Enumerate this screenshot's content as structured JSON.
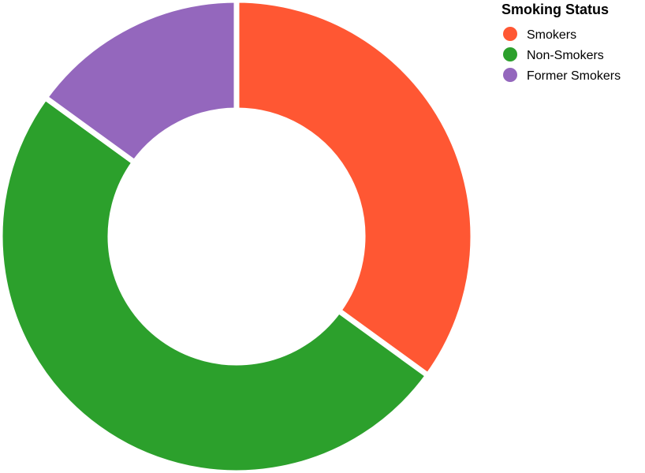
{
  "chart_data": {
    "type": "pie",
    "donut": true,
    "legend_title": "Smoking Status",
    "legend_position": "top-right",
    "categories": [
      "Smokers",
      "Non-Smokers",
      "Former Smokers"
    ],
    "values": [
      35,
      50,
      15
    ],
    "colors": [
      "#ff5733",
      "#2ca02c",
      "#9467bd"
    ]
  }
}
